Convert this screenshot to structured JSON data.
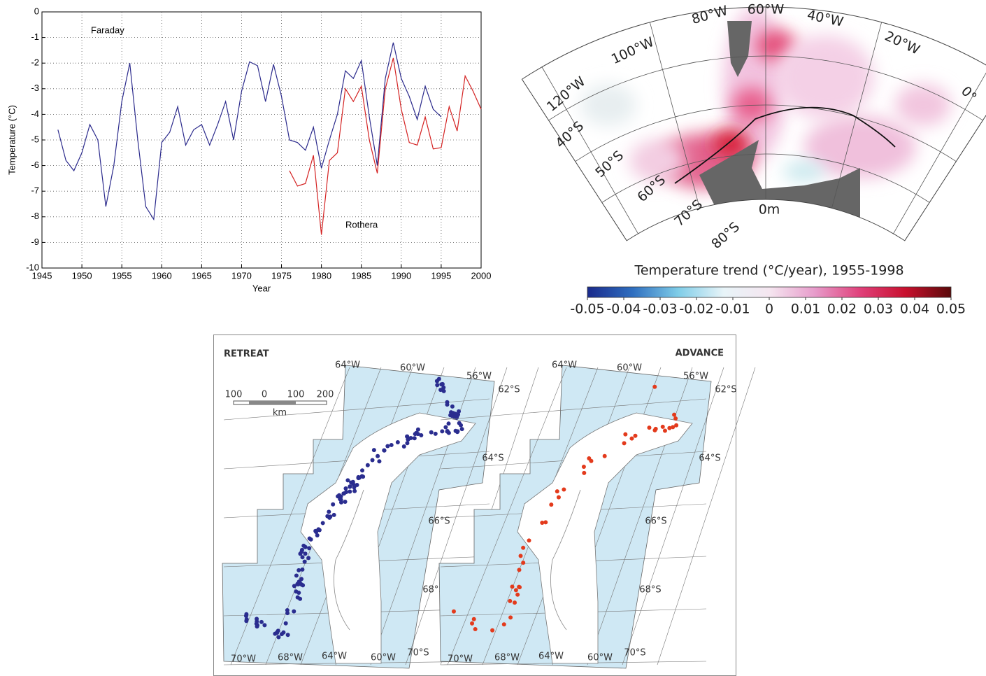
{
  "chart_data": [
    {
      "type": "line",
      "xlabel": "Year",
      "ylabel": "Temperature (°C)",
      "x": [
        1947,
        1948,
        1949,
        1950,
        1951,
        1952,
        1953,
        1954,
        1955,
        1956,
        1957,
        1958,
        1959,
        1960,
        1961,
        1962,
        1963,
        1964,
        1965,
        1966,
        1967,
        1968,
        1969,
        1970,
        1971,
        1972,
        1973,
        1974,
        1975,
        1976,
        1977,
        1978,
        1979,
        1980,
        1981,
        1982,
        1983,
        1984,
        1985,
        1986,
        1987,
        1988,
        1989,
        1990,
        1991,
        1992,
        1993,
        1994,
        1995,
        1996,
        1997,
        1998,
        1999,
        2000
      ],
      "series": [
        {
          "name": "Faraday",
          "color": "#2b2a8c",
          "values": [
            -4.6,
            -5.8,
            -6.2,
            -5.5,
            -4.4,
            -5.0,
            -7.6,
            -6.0,
            -3.5,
            -2.0,
            -5.0,
            -7.6,
            -8.1,
            -5.1,
            -4.7,
            -3.7,
            -5.2,
            -4.6,
            -4.4,
            -5.2,
            -4.4,
            -3.5,
            -5.0,
            -3.1,
            -1.95,
            -2.1,
            -3.5,
            -2.05,
            -3.3,
            -5.0,
            -5.1,
            -5.4,
            -4.5,
            -6.1,
            -5.0,
            -4.0,
            -2.3,
            -2.6,
            -1.9,
            -4.1,
            -6.0,
            -2.6,
            -1.2,
            -2.6,
            -3.3,
            -4.2,
            -2.9,
            -3.8,
            -4.1,
            null,
            null,
            null,
            null,
            null
          ]
        },
        {
          "name": "Rothera",
          "color": "#d42222",
          "values": [
            null,
            null,
            null,
            null,
            null,
            null,
            null,
            null,
            null,
            null,
            null,
            null,
            null,
            null,
            null,
            null,
            null,
            null,
            null,
            null,
            null,
            null,
            null,
            null,
            null,
            null,
            null,
            null,
            null,
            -6.2,
            -6.8,
            -6.7,
            -5.6,
            -8.7,
            -5.8,
            -5.5,
            -3.0,
            -3.5,
            -2.9,
            -5.0,
            -6.3,
            -3.0,
            -1.8,
            -3.8,
            -5.1,
            -5.2,
            -4.1,
            -5.35,
            -5.3,
            -3.7,
            -4.65,
            -2.5,
            -3.1,
            -3.8
          ]
        }
      ],
      "xlim": [
        1945,
        2000
      ],
      "xticks": [
        1945,
        1950,
        1955,
        1960,
        1965,
        1970,
        1975,
        1980,
        1985,
        1990,
        1995,
        2000
      ],
      "ylim": [
        -10,
        0
      ],
      "yticks": [
        0,
        -1,
        -2,
        -3,
        -4,
        -5,
        -6,
        -7,
        -8,
        -9,
        -10
      ],
      "grid": true
    },
    {
      "type": "colorbar",
      "title": "Temperature trend (°C/year), 1955-1998",
      "xlim": [
        -0.05,
        0.05
      ],
      "xticks": [
        -0.05,
        -0.04,
        -0.03,
        -0.02,
        -0.01,
        0,
        0.01,
        0.02,
        0.03,
        0.04,
        0.05
      ],
      "colors": [
        "#1a2a8c",
        "#2f6fc0",
        "#7fcde8",
        "#e8f4f8",
        "#f5e6f0",
        "#e79ccb",
        "#e0407a",
        "#c8102e",
        "#5a0a0a"
      ]
    }
  ],
  "trend_map": {
    "labels": [
      "80°W",
      "60°W",
      "40°W",
      "20°W",
      "0°",
      "100°W",
      "120°W",
      "40°S",
      "50°S",
      "60°S",
      "70°S",
      "80°S",
      "0m"
    ]
  },
  "glacier_maps": {
    "panels": [
      {
        "title": "RETREAT",
        "color": "#2a2d8f"
      },
      {
        "title": "ADVANCE",
        "color": "#e33a1c"
      }
    ],
    "scale": [
      "100",
      "0",
      "100",
      "200",
      "km"
    ],
    "top_longitudes": [
      "64°W",
      "60°W",
      "56°W"
    ],
    "latitudes": [
      "62°S",
      "64°S",
      "66°S",
      "68°S",
      "70°S"
    ],
    "bottom_longitudes": [
      "70°W",
      "68°W",
      "64°W",
      "60°W"
    ]
  }
}
